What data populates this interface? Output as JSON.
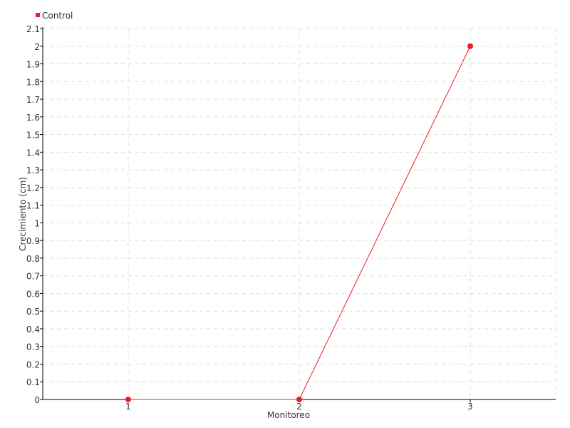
{
  "chart_data": {
    "type": "line",
    "title": "",
    "xlabel": "Monitoreo",
    "ylabel": "Crecimiento (cm)",
    "x": [
      1,
      2,
      3
    ],
    "x_ticks": [
      "1",
      "2",
      "3"
    ],
    "xlim": [
      0.5,
      3.5
    ],
    "ylim": [
      0,
      2.1
    ],
    "y_ticks": [
      "0",
      "0.1",
      "0.2",
      "0.3",
      "0.4",
      "0.5",
      "0.6",
      "0.7",
      "0.8",
      "0.9",
      "1",
      "1.1",
      "1.2",
      "1.3",
      "1.4",
      "1.5",
      "1.6",
      "1.7",
      "1.8",
      "1.9",
      "2",
      "2.1"
    ],
    "grid": true,
    "legend_position": "top-left",
    "series": [
      {
        "name": "Control",
        "values": [
          0,
          0,
          2
        ],
        "color": "#ee1c25"
      }
    ]
  }
}
